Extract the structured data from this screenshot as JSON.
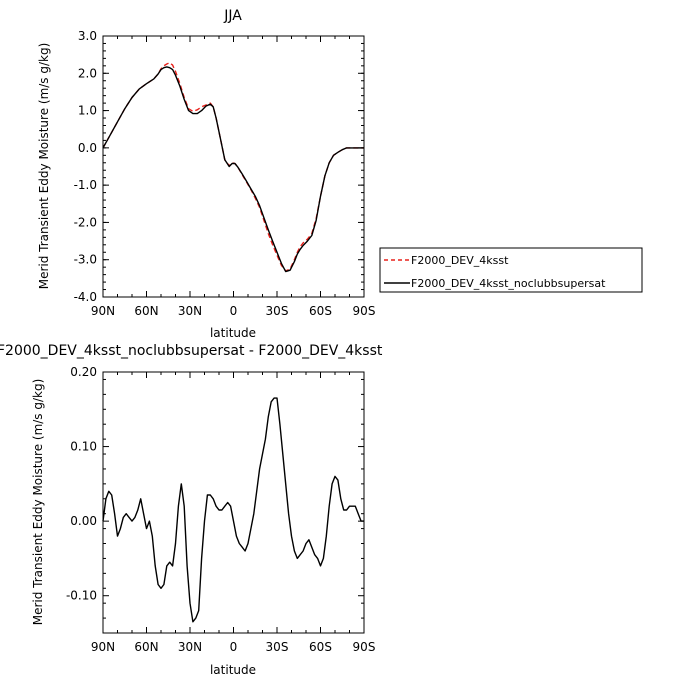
{
  "chart_data": [
    {
      "type": "line",
      "title": "JJA",
      "xlabel": "latitude",
      "ylabel": "Merid Transient Eddy Moisture (m/s g/kg)",
      "xlim": [
        90,
        -90
      ],
      "ylim": [
        -4.0,
        3.0
      ],
      "x_ticks": [
        90,
        60,
        30,
        0,
        -30,
        -60,
        -90
      ],
      "x_tick_labels": [
        "90N",
        "60N",
        "30N",
        "0",
        "30S",
        "60S",
        "90S"
      ],
      "y_ticks": [
        3.0,
        2.0,
        1.0,
        0.0,
        -1.0,
        -2.0,
        -3.0,
        -4.0
      ],
      "y_tick_labels": [
        "3.0",
        "2.0",
        "1.0",
        "0.0",
        "-1.0",
        "-2.0",
        "-3.0",
        "-4.0"
      ],
      "legend": {
        "placement": "right",
        "entries": [
          "F2000_DEV_4ksst",
          "F2000_DEV_4ksst_noclubbsupersat"
        ]
      },
      "series": [
        {
          "name": "F2000_DEV_4ksst",
          "color": "#e8201a",
          "dashed": true,
          "x": [
            90,
            85,
            80,
            75,
            70,
            65,
            60,
            55,
            52,
            50,
            48,
            46,
            44,
            42,
            40,
            37,
            34,
            31,
            28,
            25,
            22,
            19,
            16,
            14,
            12,
            9,
            6,
            3,
            1,
            -1,
            -3,
            -6,
            -9,
            -12,
            -15,
            -18,
            -21,
            -24,
            -27,
            -30,
            -33,
            -36,
            -39,
            -42,
            -44,
            -46,
            -48,
            -51,
            -54,
            -57,
            -60,
            -63,
            -66,
            -69,
            -72,
            -75,
            -78,
            -81,
            -84,
            -87,
            -90
          ],
          "y": [
            0.0,
            0.35,
            0.7,
            1.05,
            1.35,
            1.58,
            1.72,
            1.85,
            1.98,
            2.12,
            2.2,
            2.25,
            2.28,
            2.22,
            2.05,
            1.72,
            1.35,
            1.05,
            0.98,
            1.02,
            1.1,
            1.15,
            1.2,
            1.1,
            0.8,
            0.25,
            -0.32,
            -0.48,
            -0.4,
            -0.42,
            -0.52,
            -0.72,
            -0.92,
            -1.12,
            -1.35,
            -1.6,
            -1.95,
            -2.3,
            -2.6,
            -2.88,
            -3.15,
            -3.3,
            -3.25,
            -3.0,
            -2.8,
            -2.65,
            -2.55,
            -2.45,
            -2.3,
            -1.9,
            -1.3,
            -0.75,
            -0.4,
            -0.2,
            -0.12,
            -0.05,
            0.0,
            0.0,
            0.0,
            0.0,
            0.0
          ]
        },
        {
          "name": "F2000_DEV_4ksst_noclubbsupersat",
          "color": "#000000",
          "dashed": false,
          "x": [
            90,
            85,
            80,
            75,
            70,
            65,
            60,
            55,
            52,
            50,
            48,
            46,
            44,
            42,
            40,
            37,
            34,
            31,
            28,
            25,
            22,
            19,
            16,
            14,
            12,
            9,
            6,
            3,
            1,
            -1,
            -3,
            -6,
            -9,
            -12,
            -15,
            -18,
            -21,
            -24,
            -27,
            -30,
            -33,
            -36,
            -39,
            -42,
            -44,
            -46,
            -48,
            -51,
            -54,
            -57,
            -60,
            -63,
            -66,
            -69,
            -72,
            -75,
            -78,
            -81,
            -84,
            -87,
            -90
          ],
          "y": [
            0.0,
            0.35,
            0.7,
            1.05,
            1.35,
            1.58,
            1.72,
            1.85,
            1.98,
            2.1,
            2.15,
            2.17,
            2.15,
            2.1,
            1.95,
            1.65,
            1.3,
            1.0,
            0.92,
            0.92,
            1.0,
            1.12,
            1.17,
            1.1,
            0.8,
            0.25,
            -0.32,
            -0.5,
            -0.42,
            -0.42,
            -0.52,
            -0.7,
            -0.9,
            -1.1,
            -1.3,
            -1.55,
            -1.88,
            -2.2,
            -2.5,
            -2.8,
            -3.1,
            -3.32,
            -3.28,
            -3.05,
            -2.85,
            -2.72,
            -2.62,
            -2.5,
            -2.35,
            -1.95,
            -1.3,
            -0.75,
            -0.4,
            -0.2,
            -0.12,
            -0.05,
            0.0,
            0.0,
            0.0,
            0.0,
            0.0
          ]
        }
      ]
    },
    {
      "type": "line",
      "title": "F2000_DEV_4ksst_noclubbsupersat - F2000_DEV_4ksst",
      "xlabel": "latitude",
      "ylabel": "Merid Transient Eddy Moisture (m/s g/kg)",
      "xlim": [
        90,
        -90
      ],
      "ylim": [
        -0.15,
        0.2
      ],
      "x_ticks": [
        90,
        60,
        30,
        0,
        -30,
        -60,
        -90
      ],
      "x_tick_labels": [
        "90N",
        "60N",
        "30N",
        "0",
        "30S",
        "60S",
        "90S"
      ],
      "y_ticks": [
        0.2,
        0.1,
        0.0,
        -0.1
      ],
      "y_tick_labels": [
        "0.20",
        "0.10",
        "0.00",
        "-0.10"
      ],
      "series": [
        {
          "color": "#000000",
          "dashed": false,
          "x": [
            90,
            88,
            86,
            84,
            82,
            80,
            78,
            76,
            74,
            72,
            70,
            68,
            66,
            64,
            62,
            60,
            58,
            56,
            54,
            52,
            50,
            48,
            46,
            44,
            42,
            40,
            38,
            36,
            34,
            32,
            30,
            28,
            26,
            24,
            22,
            20,
            18,
            16,
            14,
            12,
            10,
            8,
            6,
            4,
            2,
            0,
            -2,
            -4,
            -6,
            -8,
            -10,
            -12,
            -14,
            -16,
            -18,
            -20,
            -22,
            -24,
            -26,
            -28,
            -30,
            -32,
            -34,
            -36,
            -38,
            -40,
            -42,
            -44,
            -46,
            -48,
            -50,
            -52,
            -54,
            -56,
            -58,
            -60,
            -62,
            -64,
            -66,
            -68,
            -70,
            -72,
            -74,
            -76,
            -78,
            -80,
            -82,
            -84,
            -86,
            -88,
            -90
          ],
          "y": [
            0.0,
            0.03,
            0.04,
            0.035,
            0.01,
            -0.02,
            -0.01,
            0.005,
            0.01,
            0.005,
            0.0,
            0.005,
            0.015,
            0.03,
            0.01,
            -0.01,
            0.0,
            -0.02,
            -0.06,
            -0.085,
            -0.09,
            -0.085,
            -0.06,
            -0.055,
            -0.06,
            -0.03,
            0.02,
            0.05,
            0.02,
            -0.06,
            -0.11,
            -0.135,
            -0.13,
            -0.12,
            -0.05,
            0.0,
            0.035,
            0.035,
            0.03,
            0.02,
            0.015,
            0.015,
            0.02,
            0.025,
            0.02,
            0.0,
            -0.02,
            -0.03,
            -0.035,
            -0.04,
            -0.03,
            -0.01,
            0.01,
            0.04,
            0.07,
            0.09,
            0.11,
            0.14,
            0.16,
            0.165,
            0.165,
            0.13,
            0.09,
            0.05,
            0.01,
            -0.02,
            -0.04,
            -0.05,
            -0.045,
            -0.04,
            -0.03,
            -0.025,
            -0.035,
            -0.045,
            -0.05,
            -0.06,
            -0.05,
            -0.02,
            0.02,
            0.05,
            0.06,
            0.055,
            0.03,
            0.015,
            0.015,
            0.02,
            0.02,
            0.02,
            0.01,
            0.0,
            0.0
          ]
        }
      ]
    }
  ]
}
